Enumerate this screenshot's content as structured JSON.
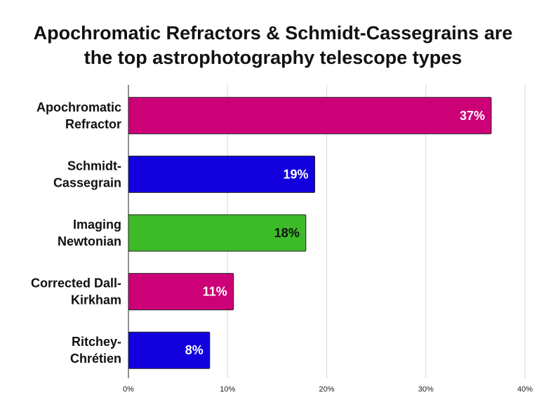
{
  "title_lines": [
    "Apochromatic Refractors & Schmidt-Cassegrains are",
    "the top astrophotography telescope types"
  ],
  "chart_data": {
    "type": "bar",
    "orientation": "horizontal",
    "title": "Apochromatic Refractors & Schmidt-Cassegrains are the top astrophotography telescope types",
    "categories": [
      "Apochromatic Refractor",
      "Schmidt-Cassegrain",
      "Imaging Newtonian",
      "Corrected Dall-Kirkham",
      "Ritchey-Chrétien"
    ],
    "category_label_lines": [
      [
        "Apochromatic",
        "Refractor"
      ],
      [
        "Schmidt-",
        "Cassegrain"
      ],
      [
        "Imaging",
        "Newtonian"
      ],
      [
        "Corrected Dall-",
        "Kirkham"
      ],
      [
        "Ritchey-",
        "Chrétien"
      ]
    ],
    "values": [
      36.6,
      18.8,
      17.9,
      10.6,
      8.2
    ],
    "data_labels": [
      "37%",
      "19%",
      "18%",
      "11%",
      "8%"
    ],
    "bar_colors": [
      "#cc0077",
      "#1100dd",
      "#3dba27",
      "#cc0077",
      "#1100dd"
    ],
    "label_colors": [
      "#ffffff",
      "#ffffff",
      "#111111",
      "#ffffff",
      "#ffffff"
    ],
    "xlim": [
      0,
      40
    ],
    "xticks": [
      0,
      10,
      20,
      30,
      40
    ],
    "xtick_labels": [
      "0%",
      "10%",
      "20%",
      "30%",
      "40%"
    ],
    "xlabel": "",
    "ylabel": "",
    "grid": true
  }
}
